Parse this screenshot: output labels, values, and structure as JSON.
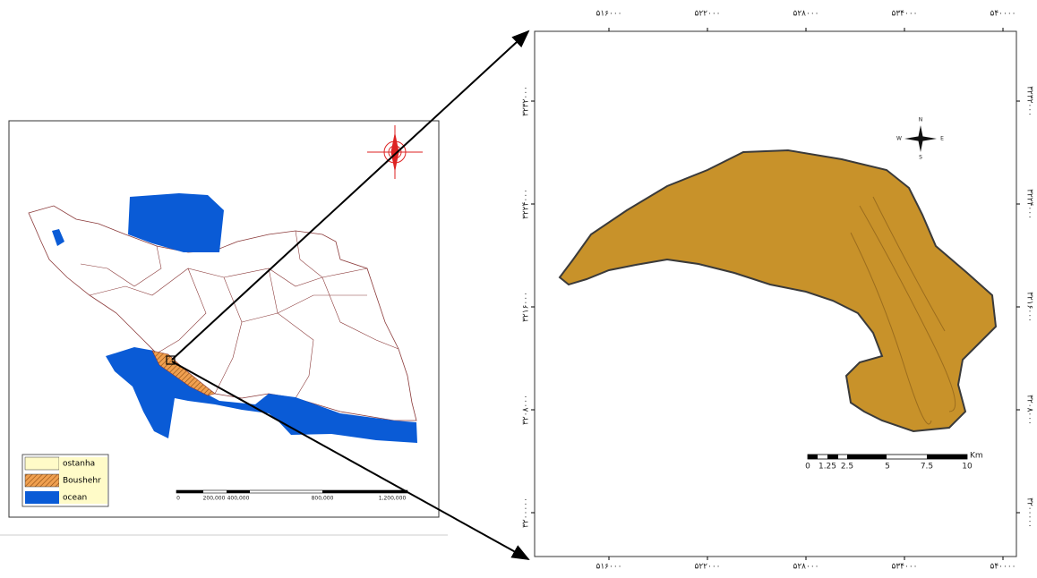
{
  "left_map": {
    "legend": [
      "ostanha",
      "Boushehr",
      "ocean"
    ],
    "scale_labels": [
      "0",
      "200,000",
      "400,000",
      "800,000",
      "1,200,000"
    ]
  },
  "right_map": {
    "x_ticks": [
      "۵۱۶۰۰۰",
      "۵۲۲۰۰۰",
      "۵۲۸۰۰۰",
      "۵۳۴۰۰۰",
      "۵۴۰۰۰۰"
    ],
    "y_ticks": [
      "۳۲۳۲۰۰۰",
      "۳۲۲۴۰۰۰",
      "۳۲۱۶۰۰۰",
      "۳۲۰۸۰۰۰",
      "۳۲۰۰۰۰۰"
    ],
    "scale_labels": [
      "0",
      "1.25",
      "2.5",
      "5",
      "7.5",
      "10"
    ],
    "scale_unit": "Km",
    "compass": [
      "N",
      "S",
      "E",
      "W"
    ]
  }
}
